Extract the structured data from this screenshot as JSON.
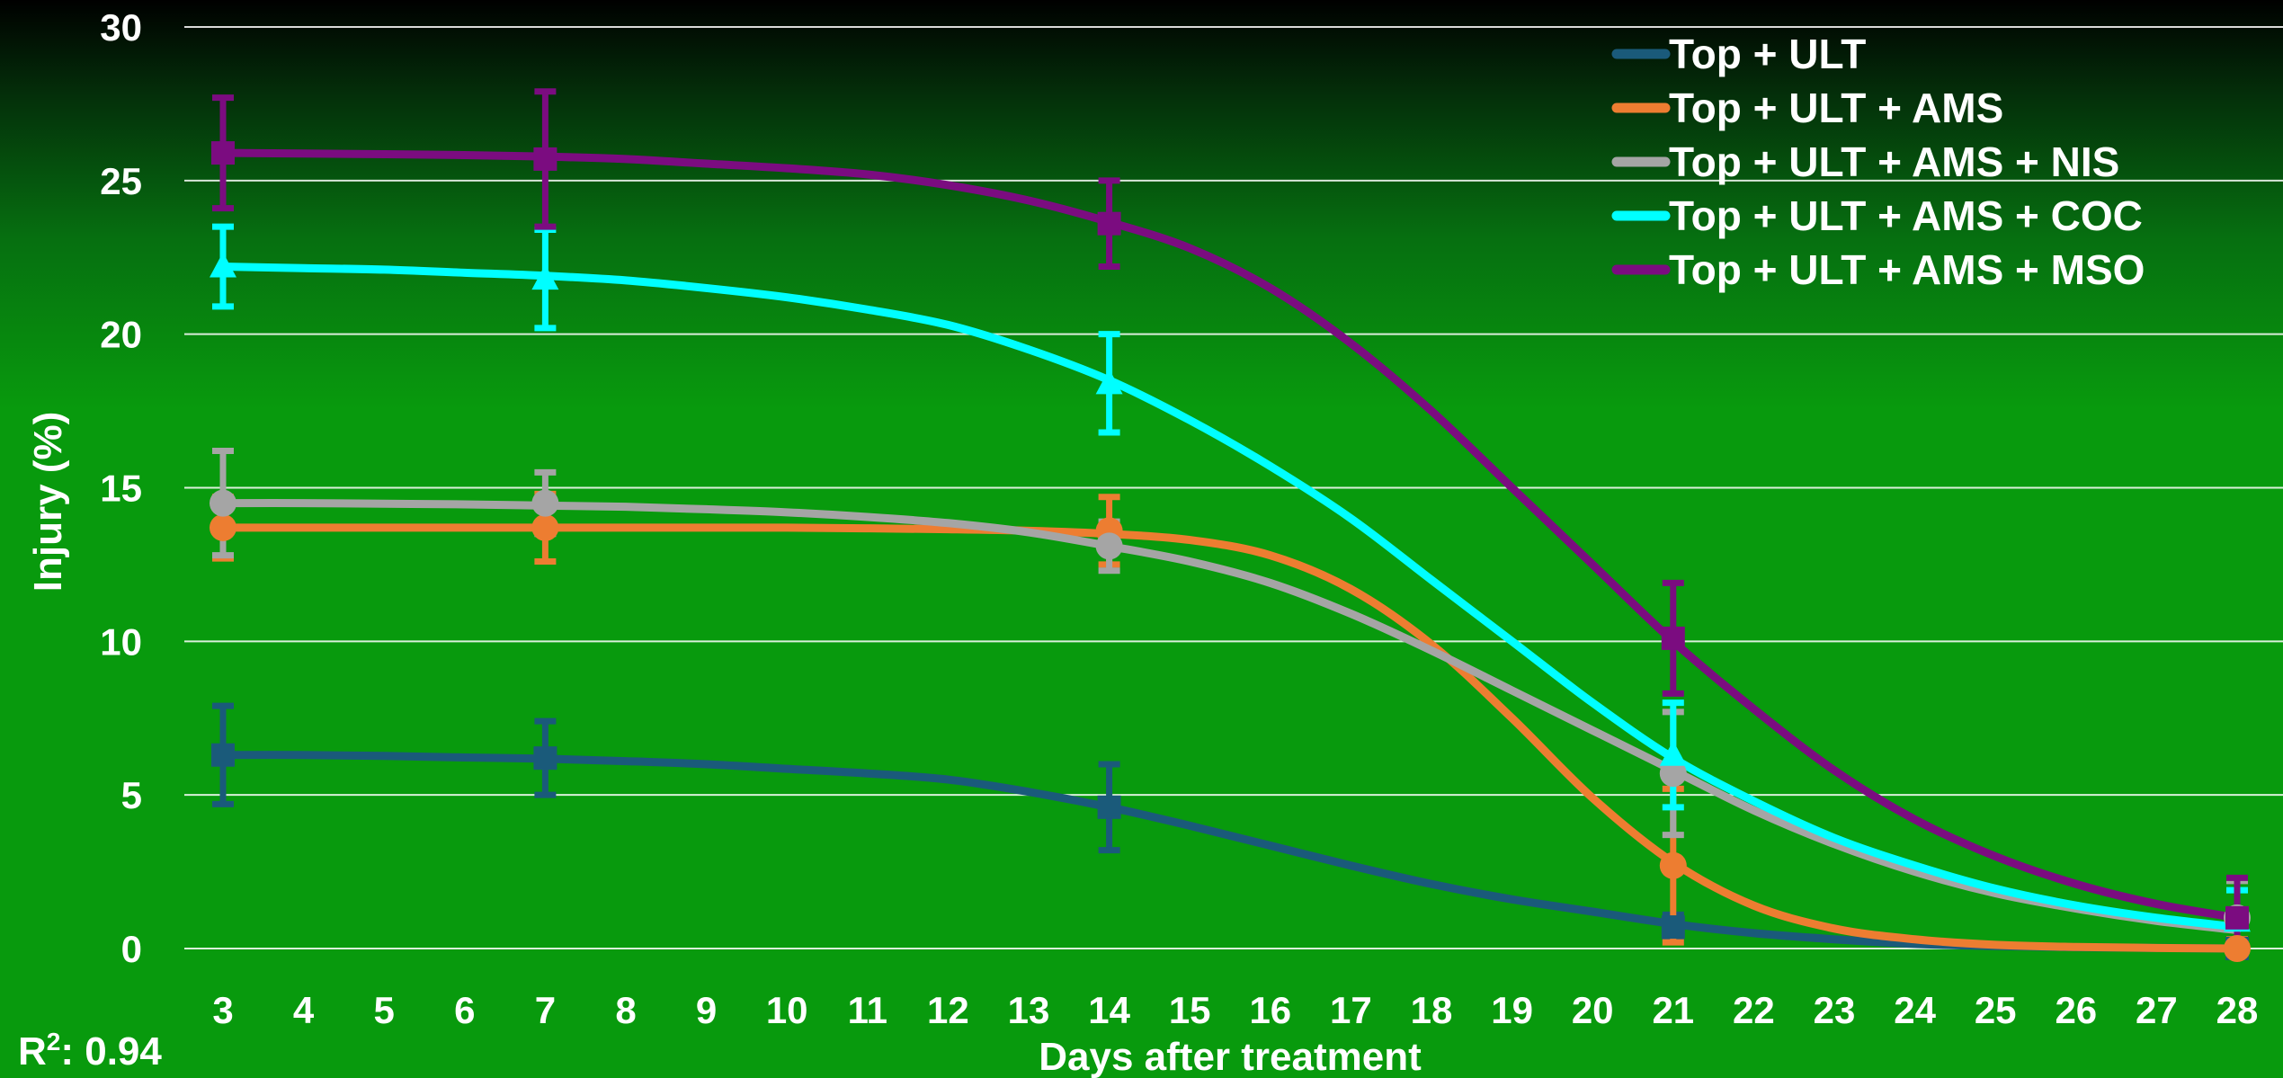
{
  "chart_data": {
    "type": "line",
    "title": "",
    "xlabel": "Days after treatment",
    "ylabel": "Injury (%)",
    "xlim": [
      3,
      28
    ],
    "ylim": [
      0,
      30
    ],
    "x_ticks": [
      3,
      4,
      5,
      6,
      7,
      8,
      9,
      10,
      11,
      12,
      13,
      14,
      15,
      16,
      17,
      18,
      19,
      20,
      21,
      22,
      23,
      24,
      25,
      26,
      27,
      28
    ],
    "y_ticks": [
      0,
      5,
      10,
      15,
      20,
      25,
      30
    ],
    "grid": "horizontal",
    "legend_position": "top-right",
    "annotation": {
      "label": "R",
      "sup": "2",
      "value": ": 0.94"
    },
    "measured_x": [
      3,
      7,
      14,
      21,
      28
    ],
    "fit_x": [
      3,
      4,
      5,
      6,
      7,
      8,
      9,
      10,
      11,
      12,
      13,
      14,
      15,
      16,
      17,
      18,
      19,
      20,
      21,
      22,
      23,
      24,
      25,
      26,
      27,
      28
    ],
    "series": [
      {
        "name": "Top + ULT",
        "color": "#1a5a7a",
        "marker": "square",
        "measured": [
          6.3,
          6.2,
          4.6,
          0.7,
          0.0
        ],
        "error": [
          1.6,
          1.2,
          1.4,
          0.4,
          0.3
        ],
        "fit": [
          6.3,
          6.3,
          6.27,
          6.22,
          6.18,
          6.1,
          6.0,
          5.85,
          5.7,
          5.5,
          5.1,
          4.6,
          4.0,
          3.35,
          2.7,
          2.1,
          1.6,
          1.2,
          0.8,
          0.5,
          0.3,
          0.15,
          0.08,
          0.04,
          0.02,
          0.0
        ]
      },
      {
        "name": "Top + ULT + AMS",
        "color": "#ed7d31",
        "marker": "circle",
        "measured": [
          13.7,
          13.7,
          13.6,
          2.7,
          0.0
        ],
        "error": [
          1.0,
          1.1,
          1.1,
          2.5,
          0.3
        ],
        "fit": [
          13.7,
          13.7,
          13.7,
          13.7,
          13.7,
          13.7,
          13.7,
          13.7,
          13.68,
          13.65,
          13.6,
          13.5,
          13.3,
          12.8,
          11.7,
          9.9,
          7.5,
          4.9,
          2.8,
          1.4,
          0.65,
          0.3,
          0.12,
          0.05,
          0.02,
          0.0
        ]
      },
      {
        "name": "Top + ULT + AMS + NIS",
        "color": "#a5a5a5",
        "marker": "circle",
        "measured": [
          14.5,
          14.5,
          13.1,
          5.7,
          1.0
        ],
        "error": [
          1.7,
          1.0,
          0.8,
          2.0,
          1.2
        ],
        "fit": [
          14.5,
          14.5,
          14.48,
          14.46,
          14.42,
          14.38,
          14.3,
          14.2,
          14.05,
          13.85,
          13.55,
          13.1,
          12.6,
          11.9,
          10.9,
          9.7,
          8.4,
          7.1,
          5.8,
          4.5,
          3.4,
          2.5,
          1.8,
          1.3,
          0.9,
          0.6
        ]
      },
      {
        "name": "Top + ULT + AMS + COC",
        "color": "#00ffff",
        "marker": "triangle",
        "measured": [
          22.2,
          21.8,
          18.4,
          6.3,
          0.9
        ],
        "error": [
          1.3,
          1.6,
          1.6,
          1.7,
          1.0
        ],
        "fit": [
          22.2,
          22.15,
          22.1,
          22.0,
          21.9,
          21.75,
          21.5,
          21.2,
          20.8,
          20.3,
          19.5,
          18.5,
          17.2,
          15.7,
          14.0,
          12.0,
          10.0,
          8.0,
          6.2,
          4.8,
          3.6,
          2.7,
          1.95,
          1.4,
          1.0,
          0.7
        ]
      },
      {
        "name": "Top + ULT + AMS + MSO",
        "color": "#7b0c80",
        "marker": "square",
        "measured": [
          25.9,
          25.7,
          23.6,
          10.1,
          1.0
        ],
        "error": [
          1.8,
          2.2,
          1.4,
          1.8,
          1.3
        ],
        "fit": [
          25.9,
          25.88,
          25.86,
          25.83,
          25.78,
          25.7,
          25.55,
          25.4,
          25.2,
          24.85,
          24.35,
          23.65,
          22.8,
          21.5,
          19.7,
          17.5,
          15.0,
          12.5,
          10.0,
          7.8,
          5.8,
          4.2,
          3.0,
          2.1,
          1.45,
          1.0
        ]
      }
    ]
  }
}
